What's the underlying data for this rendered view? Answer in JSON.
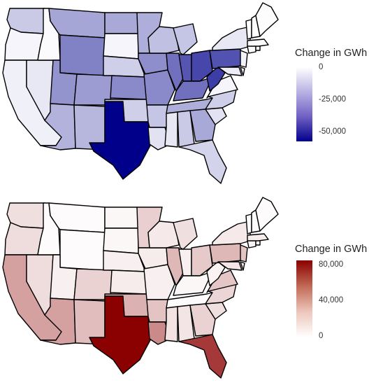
{
  "colors": {
    "decrease_low": "#ffffff",
    "decrease_high": "#00008b",
    "increase_low": "#ffffff",
    "increase_high": "#8b0000",
    "border": "#000000"
  },
  "chart_data": [
    {
      "type": "map",
      "title": "",
      "legend": {
        "title": "Change in GWh",
        "placement": "right",
        "ticks": [
          "0",
          "-25,000",
          "-50,000"
        ],
        "range": [
          -57000,
          0
        ],
        "tick_values": [
          0,
          -25000,
          -50000
        ]
      },
      "states": {
        "WA": -10000,
        "OR": -1500,
        "CA": -2500,
        "NV": -4000,
        "ID": -500,
        "MT": -18000,
        "WY": -26000,
        "UT": -22000,
        "AZ": -15000,
        "NM": -14000,
        "CO": -20000,
        "ND": -17000,
        "SD": -1500,
        "NE": -9000,
        "KS": -24000,
        "OK": -9000,
        "TX": -57000,
        "MN": -16000,
        "IA": -23000,
        "MO": -24000,
        "AR": -11000,
        "LA": -5000,
        "WI": -12000,
        "IL": -30000,
        "MI": -11000,
        "IN": -36000,
        "OH": -40000,
        "KY": -30000,
        "TN": -16000,
        "MS": -4000,
        "AL": -10000,
        "GA": -17000,
        "FL": -8000,
        "SC": -5000,
        "NC": -9000,
        "VA": -1500,
        "WV": -42000,
        "PA": -37000,
        "NY": -4000,
        "NJ": -2000,
        "DE": -1000,
        "MD": -3000,
        "CT": -500,
        "RI": -300,
        "MA": -500,
        "VT": -200,
        "NH": -300,
        "ME": -300
      }
    },
    {
      "type": "map",
      "title": "",
      "legend": {
        "title": "Change in GWh",
        "placement": "right",
        "ticks": [
          "80,000",
          "40,000",
          "0"
        ],
        "range": [
          0,
          90000
        ],
        "tick_values": [
          80000,
          40000,
          0
        ]
      },
      "states": {
        "WA": 9000,
        "OR": 10000,
        "CA": 30000,
        "NV": 10000,
        "ID": 1000,
        "MT": 1000,
        "WY": 1000,
        "UT": 4000,
        "AZ": 30000,
        "NM": 20000,
        "CO": 13000,
        "ND": 2000,
        "SD": 2000,
        "NE": 4000,
        "KS": 5000,
        "OK": 24000,
        "TX": 90000,
        "MN": 14000,
        "IA": 5000,
        "MO": 4000,
        "AR": 18000,
        "LA": 38000,
        "WI": 6000,
        "IL": 22000,
        "MI": 9000,
        "IN": 4000,
        "OH": 16000,
        "KY": 2000,
        "TN": 1000,
        "MS": 8000,
        "AL": 7000,
        "GA": 13000,
        "FL": 68000,
        "SC": 9000,
        "NC": 12000,
        "VA": 17000,
        "WV": 3000,
        "PA": 22000,
        "NY": 6000,
        "NJ": 18000,
        "DE": 4000,
        "MD": 7000,
        "CT": 3000,
        "RI": 1000,
        "MA": 5000,
        "VT": 500,
        "NH": 1000,
        "ME": 1000
      }
    }
  ]
}
